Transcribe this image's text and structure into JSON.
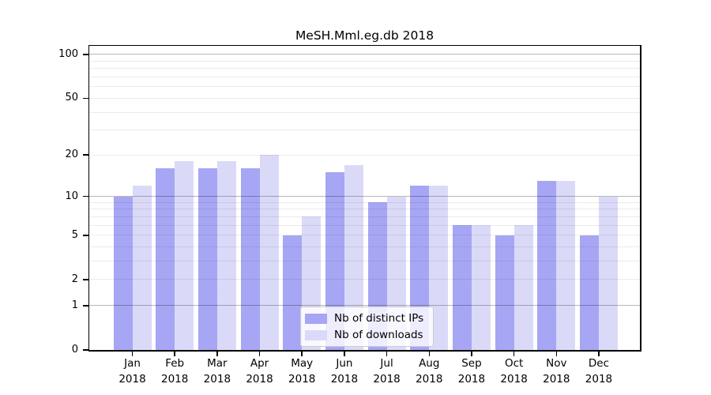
{
  "chart_data": {
    "type": "bar",
    "title": "MeSH.Mml.eg.db 2018",
    "categories": [
      {
        "month": "Jan",
        "year": "2018"
      },
      {
        "month": "Feb",
        "year": "2018"
      },
      {
        "month": "Mar",
        "year": "2018"
      },
      {
        "month": "Apr",
        "year": "2018"
      },
      {
        "month": "May",
        "year": "2018"
      },
      {
        "month": "Jun",
        "year": "2018"
      },
      {
        "month": "Jul",
        "year": "2018"
      },
      {
        "month": "Aug",
        "year": "2018"
      },
      {
        "month": "Sep",
        "year": "2018"
      },
      {
        "month": "Oct",
        "year": "2018"
      },
      {
        "month": "Nov",
        "year": "2018"
      },
      {
        "month": "Dec",
        "year": "2018"
      }
    ],
    "series": [
      {
        "name": "Nb of distinct IPs",
        "color": "#a6a6f4",
        "values": [
          10,
          16,
          16,
          16,
          5,
          15,
          9,
          12,
          6,
          5,
          13,
          5
        ]
      },
      {
        "name": "Nb of downloads",
        "color": "#dadaf8",
        "values": [
          12,
          18,
          18,
          20,
          7,
          17,
          10,
          12,
          6,
          6,
          13,
          10
        ]
      }
    ],
    "y_axis": {
      "scale": "log1p",
      "tick_labels": [
        "0",
        "1",
        "2",
        "5",
        "10",
        "20",
        "50",
        "100"
      ],
      "tick_values": [
        0,
        1,
        2,
        5,
        10,
        20,
        50,
        100
      ],
      "major_gridlines": [
        1,
        10,
        100
      ],
      "minor_gridlines": [
        2,
        3,
        4,
        5,
        6,
        7,
        8,
        9,
        20,
        30,
        40,
        50,
        60,
        70,
        80,
        90
      ],
      "max": 114.6,
      "min": 0
    },
    "grid": "on",
    "legend_position": "bottom-center",
    "style": {
      "bar_ips_color": "#a6a6f4",
      "bar_downloads_color": "#dadaf8",
      "spine_color": "#000000",
      "background": "#ffffff"
    }
  }
}
